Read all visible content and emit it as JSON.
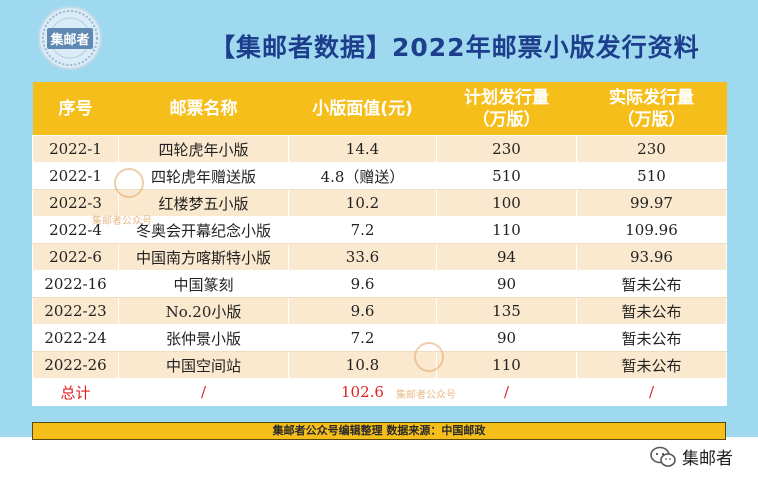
{
  "logo": {
    "text": "集邮者"
  },
  "title": "【集邮者数据】2022年邮票小版发行资料",
  "table": {
    "headers": [
      {
        "line1": "序号",
        "line2": ""
      },
      {
        "line1": "邮票名称",
        "line2": ""
      },
      {
        "line1": "小版面值(元)",
        "line2": ""
      },
      {
        "line1": "计划发行量",
        "line2": "（万版）"
      },
      {
        "line1": "实际发行量",
        "line2": "（万版）"
      }
    ],
    "rows": [
      [
        "2022-1",
        "四轮虎年小版",
        "14.4",
        "230",
        "230"
      ],
      [
        "2022-1",
        "四轮虎年赠送版",
        "4.8（赠送）",
        "510",
        "510"
      ],
      [
        "2022-3",
        "红楼梦五小版",
        "10.2",
        "100",
        "99.97"
      ],
      [
        "2022-4",
        "冬奥会开幕纪念小版",
        "7.2",
        "110",
        "109.96"
      ],
      [
        "2022-6",
        "中国南方喀斯特小版",
        "33.6",
        "94",
        "93.96"
      ],
      [
        "2022-16",
        "中国篆刻",
        "9.6",
        "90",
        "暂未公布"
      ],
      [
        "2022-23",
        "No.20小版",
        "9.6",
        "135",
        "暂未公布"
      ],
      [
        "2022-24",
        "张仲景小版",
        "7.2",
        "90",
        "暂未公布"
      ],
      [
        "2022-26",
        "中国空间站",
        "10.8",
        "110",
        "暂未公布"
      ]
    ],
    "total": [
      "总计",
      "/",
      "102.6",
      "/",
      "/"
    ]
  },
  "footer": "集邮者公众号编辑整理  数据来源：中国邮政",
  "watermark": "集邮者公众号",
  "wechat": {
    "icon": "wechat-icon",
    "label": "集邮者"
  },
  "colors": {
    "background": "#9fd9f0",
    "header": "#f5be1a",
    "stripe": "#fbe9cf",
    "title": "#1d3e8c",
    "total": "#e02020"
  }
}
